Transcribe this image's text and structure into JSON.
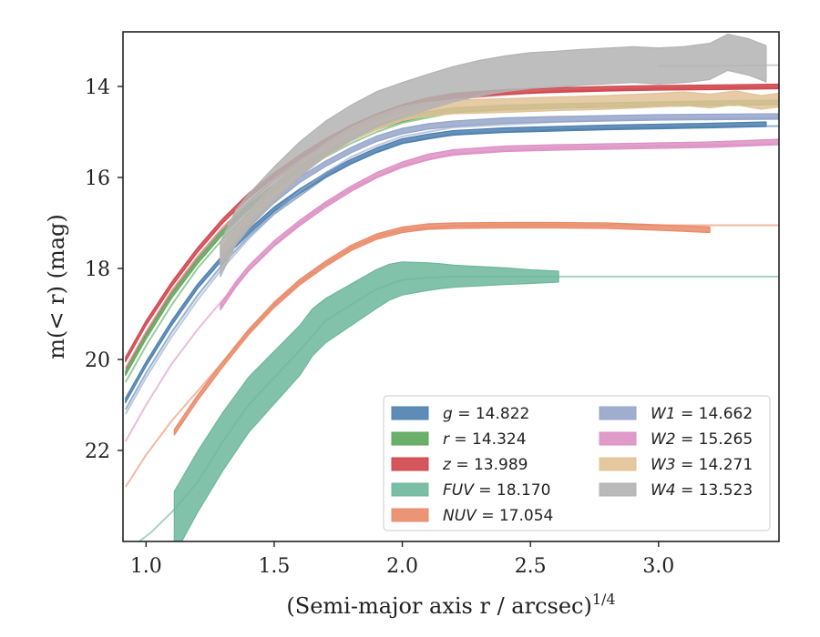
{
  "chart_data": {
    "type": "line",
    "title": "",
    "xlabel": "(Semi-major axis r / arcsec)",
    "xlabel_exponent": "1/4",
    "ylabel": "m(< r) (mag)",
    "xlim": [
      0.91,
      3.47
    ],
    "ylim": [
      24.0,
      12.8
    ],
    "y_inverted": true,
    "grid": false,
    "legend_position": "lower-right",
    "x_ticks": [
      1.0,
      1.5,
      2.0,
      2.5,
      3.0
    ],
    "x_tick_labels": [
      "1.0",
      "1.5",
      "2.0",
      "2.5",
      "3.0"
    ],
    "y_ticks": [
      14,
      16,
      18,
      20,
      22
    ],
    "y_tick_labels": [
      "14",
      "16",
      "18",
      "20",
      "22"
    ],
    "series": [
      {
        "name": "g = 14.822",
        "name_parts": [
          "g",
          " = 14.822"
        ],
        "color": "#4c7faf",
        "x": [
          0.92,
          1.0,
          1.1,
          1.2,
          1.3,
          1.4,
          1.5,
          1.6,
          1.7,
          1.8,
          1.9,
          2.0,
          2.1,
          2.2,
          2.4,
          2.6,
          2.8,
          3.0,
          3.2,
          3.42
        ],
        "y": [
          20.9,
          20.1,
          19.2,
          18.4,
          17.75,
          17.2,
          16.7,
          16.3,
          15.95,
          15.65,
          15.4,
          15.2,
          15.1,
          15.02,
          14.96,
          14.93,
          14.9,
          14.88,
          14.86,
          14.83
        ],
        "band": 0.05,
        "faint_x": [
          0.92,
          1.0,
          1.1,
          1.2,
          1.3,
          1.4,
          1.5,
          1.6,
          1.7,
          1.8,
          1.9,
          2.0,
          2.2,
          2.6,
          3.0,
          3.47
        ],
        "faint_y": [
          21.1,
          20.3,
          19.4,
          18.6,
          17.9,
          17.3,
          16.8,
          16.4,
          16.0,
          15.7,
          15.45,
          15.25,
          15.05,
          14.95,
          14.9,
          14.87
        ]
      },
      {
        "name": "r = 14.324",
        "name_parts": [
          "r",
          " = 14.324"
        ],
        "color": "#5aa75a",
        "x": [
          0.92,
          1.0,
          1.1,
          1.2,
          1.3,
          1.4,
          1.5,
          1.6,
          1.7,
          1.8,
          1.9,
          2.0,
          2.1,
          2.2,
          2.4,
          2.6,
          2.8,
          3.0,
          3.2,
          3.47
        ],
        "y": [
          20.3,
          19.5,
          18.6,
          17.85,
          17.2,
          16.65,
          16.2,
          15.8,
          15.45,
          15.15,
          14.9,
          14.72,
          14.6,
          14.52,
          14.46,
          14.43,
          14.41,
          14.39,
          14.37,
          14.35
        ],
        "band": 0.05,
        "faint_x": [
          0.92,
          1.0,
          1.1,
          1.2,
          1.3,
          1.4,
          1.5,
          1.6,
          1.7,
          1.8,
          1.9,
          2.0,
          2.2,
          2.6,
          3.0,
          3.47
        ],
        "faint_y": [
          20.5,
          19.7,
          18.8,
          18.0,
          17.35,
          16.8,
          16.3,
          15.9,
          15.55,
          15.25,
          15.0,
          14.8,
          14.57,
          14.47,
          14.42,
          14.39
        ]
      },
      {
        "name": "z = 13.989",
        "name_parts": [
          "z",
          " = 13.989"
        ],
        "color": "#d0444a",
        "x": [
          0.92,
          1.0,
          1.1,
          1.2,
          1.3,
          1.4,
          1.5,
          1.6,
          1.7,
          1.8,
          1.9,
          2.0,
          2.1,
          2.2,
          2.4,
          2.6,
          2.8,
          3.0,
          3.2,
          3.47
        ],
        "y": [
          20.0,
          19.2,
          18.35,
          17.6,
          16.95,
          16.4,
          15.95,
          15.55,
          15.2,
          14.9,
          14.65,
          14.45,
          14.3,
          14.2,
          14.12,
          14.08,
          14.05,
          14.03,
          14.02,
          14.0
        ],
        "band": 0.05,
        "faint_x": [
          0.92,
          1.0,
          1.1,
          1.2,
          1.3,
          1.4,
          1.5,
          1.6,
          1.7,
          1.8,
          1.9,
          2.0,
          2.2,
          2.6,
          3.0,
          3.47
        ],
        "faint_y": [
          20.2,
          19.4,
          18.5,
          17.75,
          17.1,
          16.55,
          16.05,
          15.65,
          15.3,
          15.0,
          14.75,
          14.55,
          14.27,
          14.1,
          14.04,
          14.01
        ]
      },
      {
        "name": "FUV = 18.170",
        "name_parts": [
          "FUV",
          " = 18.170"
        ],
        "color": "#6cb79b",
        "x": [
          1.11,
          1.2,
          1.3,
          1.4,
          1.5,
          1.6,
          1.65,
          1.7,
          1.8,
          1.9,
          1.95,
          2.0,
          2.05,
          2.1,
          2.15,
          2.2,
          2.3,
          2.4,
          2.5,
          2.61
        ],
        "y": [
          23.6,
          22.7,
          21.8,
          21.0,
          20.4,
          19.8,
          19.4,
          19.15,
          18.8,
          18.45,
          18.3,
          18.22,
          18.2,
          18.18,
          18.17,
          18.17,
          18.17,
          18.17,
          18.18,
          18.18
        ],
        "band_start": 0.7,
        "band_end": 0.12,
        "faint_x": [
          0.95,
          1.02,
          1.11,
          1.2,
          1.3,
          1.4,
          1.5,
          1.6,
          1.7,
          1.8,
          1.9,
          2.0,
          2.1,
          2.2,
          2.4,
          2.61,
          2.8,
          3.0,
          3.47
        ],
        "faint_y": [
          24.1,
          23.8,
          23.3,
          22.7,
          21.8,
          21.0,
          20.4,
          19.8,
          19.15,
          18.8,
          18.45,
          18.25,
          18.2,
          18.18,
          18.18,
          18.18,
          18.18,
          18.18,
          18.18
        ]
      },
      {
        "name": "NUV = 17.054",
        "name_parts": [
          "NUV",
          " = 17.054"
        ],
        "color": "#e98a68",
        "x": [
          1.11,
          1.2,
          1.3,
          1.4,
          1.5,
          1.6,
          1.7,
          1.8,
          1.9,
          2.0,
          2.1,
          2.2,
          2.4,
          2.6,
          2.8,
          3.0,
          3.2
        ],
        "y": [
          21.6,
          20.85,
          20.1,
          19.4,
          18.8,
          18.3,
          17.9,
          17.55,
          17.3,
          17.15,
          17.08,
          17.06,
          17.05,
          17.05,
          17.06,
          17.1,
          17.15
        ],
        "band": 0.06,
        "faint_x": [
          0.92,
          1.0,
          1.1,
          1.2,
          1.3,
          1.4,
          1.5,
          1.6,
          1.7,
          1.8,
          1.9,
          2.0,
          2.2,
          2.6,
          3.0,
          3.47
        ],
        "faint_y": [
          22.8,
          22.1,
          21.35,
          20.7,
          20.05,
          19.4,
          18.8,
          18.3,
          17.9,
          17.55,
          17.3,
          17.15,
          17.06,
          17.05,
          17.05,
          17.05
        ]
      },
      {
        "name": "W1 = 14.662",
        "name_parts": [
          "W1",
          " = 14.662"
        ],
        "color": "#95a5c9",
        "x": [
          1.29,
          1.35,
          1.4,
          1.5,
          1.6,
          1.7,
          1.8,
          1.9,
          2.0,
          2.1,
          2.2,
          2.4,
          2.6,
          2.8,
          3.0,
          3.2,
          3.47
        ],
        "y": [
          17.9,
          17.4,
          17.05,
          16.5,
          16.05,
          15.7,
          15.4,
          15.15,
          14.98,
          14.88,
          14.82,
          14.75,
          14.72,
          14.7,
          14.68,
          14.67,
          14.66
        ],
        "band": 0.06,
        "faint_x": [
          0.92,
          1.0,
          1.1,
          1.2,
          1.29,
          1.4,
          1.5,
          1.6,
          1.7,
          1.8,
          1.9,
          2.0,
          2.2,
          2.6,
          3.0,
          3.47
        ],
        "faint_y": [
          21.2,
          20.4,
          19.5,
          18.7,
          18.05,
          17.35,
          16.8,
          16.3,
          15.9,
          15.55,
          15.3,
          15.1,
          14.9,
          14.78,
          14.72,
          14.69
        ]
      },
      {
        "name": "W2 = 15.265",
        "name_parts": [
          "W2",
          " = 15.265"
        ],
        "color": "#dd90c3",
        "x": [
          1.29,
          1.35,
          1.4,
          1.5,
          1.6,
          1.7,
          1.8,
          1.9,
          2.0,
          2.1,
          2.2,
          2.4,
          2.6,
          2.8,
          3.0,
          3.2,
          3.47
        ],
        "y": [
          18.85,
          18.35,
          18.0,
          17.45,
          17.0,
          16.6,
          16.25,
          15.95,
          15.72,
          15.55,
          15.45,
          15.37,
          15.34,
          15.32,
          15.3,
          15.28,
          15.22
        ],
        "band": 0.06,
        "faint_x": [
          0.92,
          1.0,
          1.1,
          1.2,
          1.29,
          1.4,
          1.5,
          1.6,
          1.7,
          1.8,
          1.9,
          2.0,
          2.2,
          2.6,
          3.0,
          3.47
        ],
        "faint_y": [
          21.8,
          21.0,
          20.1,
          19.35,
          18.75,
          18.05,
          17.5,
          17.0,
          16.6,
          16.25,
          15.98,
          15.75,
          15.48,
          15.35,
          15.31,
          15.27
        ]
      },
      {
        "name": "W3 = 14.271",
        "name_parts": [
          "W3",
          " = 14.271"
        ],
        "color": "#e2c296",
        "x": [
          1.29,
          1.4,
          1.5,
          1.6,
          1.7,
          1.8,
          1.9,
          2.0,
          2.1,
          2.2,
          2.4,
          2.6,
          2.8,
          3.0,
          3.1,
          3.2,
          3.3,
          3.4,
          3.47
        ],
        "y": [
          17.7,
          16.9,
          16.3,
          15.8,
          15.4,
          15.05,
          14.8,
          14.6,
          14.5,
          14.45,
          14.42,
          14.38,
          14.35,
          14.3,
          14.27,
          14.32,
          14.25,
          14.35,
          14.3
        ],
        "band": 0.15,
        "faint_x": [],
        "faint_y": []
      },
      {
        "name": "W4 = 13.523",
        "name_parts": [
          "W4",
          " = 13.523"
        ],
        "color": "#b3b3b3",
        "x": [
          1.29,
          1.35,
          1.4,
          1.5,
          1.6,
          1.7,
          1.8,
          1.9,
          2.0,
          2.1,
          2.2,
          2.3,
          2.4,
          2.5,
          2.6,
          2.7,
          2.8,
          2.9,
          3.0,
          3.1,
          3.2,
          3.27,
          3.35,
          3.42
        ],
        "y": [
          17.8,
          17.1,
          16.75,
          16.15,
          15.6,
          15.15,
          14.8,
          14.5,
          14.3,
          14.12,
          13.95,
          13.82,
          13.72,
          13.65,
          13.62,
          13.58,
          13.55,
          13.52,
          13.55,
          13.52,
          13.45,
          13.25,
          13.35,
          13.5
        ],
        "band_start": 0.38,
        "band_end": 0.4,
        "faint_x": [
          3.0,
          3.2,
          3.47
        ],
        "faint_y": [
          13.55,
          13.55,
          13.53
        ]
      }
    ]
  }
}
